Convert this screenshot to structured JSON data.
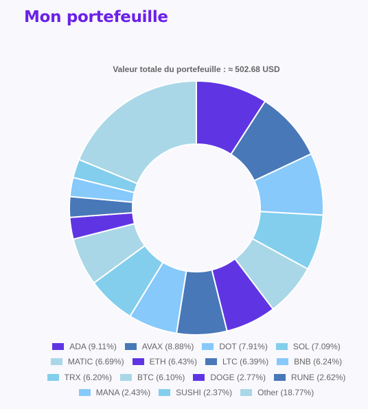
{
  "page": {
    "title": "Mon portefeuille"
  },
  "chart_data": {
    "type": "doughnut",
    "title": "Valeur totale du portefeuille : ≈ 502.68 USD",
    "legend_position": "bottom",
    "categories": [
      "ADA",
      "AVAX",
      "DOT",
      "SOL",
      "MATIC",
      "ETH",
      "LTC",
      "BNB",
      "TRX",
      "BTC",
      "DOGE",
      "RUNE",
      "MANA",
      "SUSHI",
      "Other"
    ],
    "values": [
      9.11,
      8.88,
      7.91,
      7.09,
      6.69,
      6.43,
      6.39,
      6.24,
      6.2,
      6.1,
      2.77,
      2.62,
      2.43,
      2.37,
      18.77
    ],
    "legend_labels": [
      "ADA (9.11%)",
      "AVAX (8.88%)",
      "DOT (7.91%)",
      "SOL (7.09%)",
      "MATIC (6.69%)",
      "ETH (6.43%)",
      "LTC (6.39%)",
      "BNB (6.24%)",
      "TRX (6.20%)",
      "BTC (6.10%)",
      "DOGE (2.77%)",
      "RUNE (2.62%)",
      "MANA (2.43%)",
      "SUSHI (2.37%)",
      "Other (18.77%)"
    ],
    "colors": [
      "#5f35e3",
      "#4878b8",
      "#86c9fa",
      "#83ceed",
      "#a9d7e7",
      "#5f35e3",
      "#4878b8",
      "#86c9fa",
      "#83ceed",
      "#a9d7e7",
      "#5f35e3",
      "#4878b8",
      "#86c9fa",
      "#83ceed",
      "#a9d7e7"
    ],
    "unit": "%"
  }
}
